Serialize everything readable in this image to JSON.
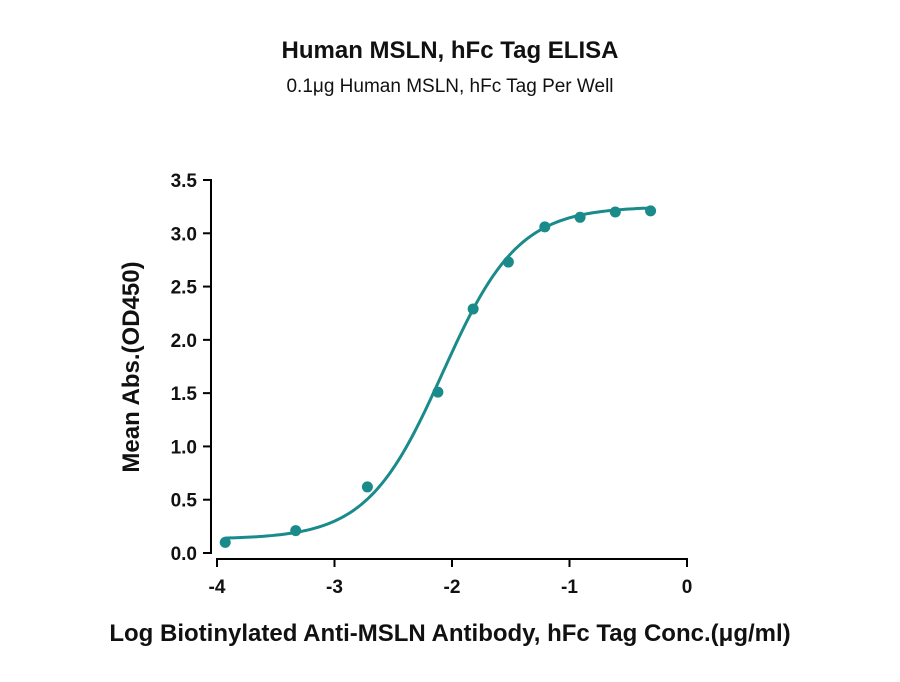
{
  "chart_data": {
    "type": "scatter",
    "title": "Human MSLN, hFc Tag ELISA",
    "subtitle": "0.1μg Human MSLN, hFc Tag Per Well",
    "xlabel": "Log Biotinylated Anti-MSLN Antibody, hFc Tag Conc.(μg/ml)",
    "ylabel": "Mean Abs.(OD450)",
    "xlim": [
      -4,
      0
    ],
    "ylim": [
      0,
      3.5
    ],
    "x_ticks": [
      -4,
      -3,
      -2,
      -1,
      0
    ],
    "x_tick_labels": [
      "-4",
      "-3",
      "-2",
      "-1",
      "0"
    ],
    "y_ticks": [
      0.0,
      0.5,
      1.0,
      1.5,
      2.0,
      2.5,
      3.0,
      3.5
    ],
    "y_tick_labels": [
      "0.0",
      "0.5",
      "1.0",
      "1.5",
      "2.0",
      "2.5",
      "3.0",
      "3.5"
    ],
    "grid": false,
    "color": "#1a8a8a",
    "series": [
      {
        "x": [
          -3.93,
          -3.33,
          -2.72,
          -2.12,
          -1.82,
          -1.52,
          -1.21,
          -0.91,
          -0.61,
          -0.31
        ],
        "y": [
          0.1,
          0.21,
          0.62,
          1.51,
          2.29,
          2.73,
          3.06,
          3.15,
          3.2,
          3.21
        ]
      }
    ],
    "fit": {
      "model": "4PL",
      "bottom": 0.13,
      "top": 3.25,
      "log_ec50": -2.08,
      "hill_slope": 1.35
    }
  }
}
